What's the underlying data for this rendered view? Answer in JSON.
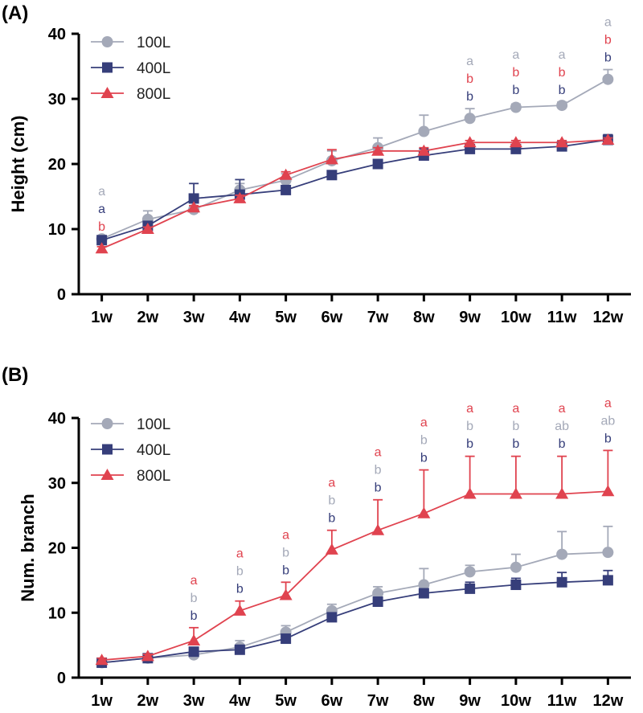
{
  "colors": {
    "100L": "#A4A9B8",
    "400L": "#363E7A",
    "800L": "#E0434F"
  },
  "chart_data": [
    {
      "panel": "(A)",
      "type": "line",
      "ylabel": "Height (cm)",
      "xlabel": "",
      "categories": [
        "1w",
        "2w",
        "3w",
        "4w",
        "5w",
        "6w",
        "7w",
        "8w",
        "9w",
        "10w",
        "11w",
        "12w"
      ],
      "ylim": [
        0,
        40
      ],
      "yticks": [
        0,
        10,
        20,
        30,
        40
      ],
      "legend_position": "top-left",
      "series": [
        {
          "name": "100L",
          "marker": "circle",
          "values": [
            8.5,
            11.5,
            13.0,
            16.0,
            17.5,
            20.5,
            22.5,
            25.0,
            27.0,
            28.7,
            29.0,
            33.0
          ],
          "errors": [
            0.5,
            1.3,
            0.5,
            1.0,
            1.0,
            1.5,
            1.5,
            2.5,
            1.5,
            0.5,
            0.5,
            1.5
          ]
        },
        {
          "name": "400L",
          "marker": "square",
          "values": [
            8.3,
            10.5,
            14.7,
            15.3,
            16.0,
            18.3,
            20.0,
            21.3,
            22.3,
            22.3,
            22.7,
            23.7
          ],
          "errors": [
            0.5,
            0.5,
            2.3,
            2.3,
            0.5,
            0.5,
            0.5,
            1.0,
            0.5,
            0.5,
            0.5,
            0.8
          ]
        },
        {
          "name": "800L",
          "marker": "triangle",
          "values": [
            7.0,
            10.0,
            13.3,
            14.7,
            18.3,
            20.7,
            22.0,
            22.0,
            23.3,
            23.3,
            23.3,
            23.7
          ],
          "errors": [
            0.3,
            0.3,
            0.3,
            0.5,
            0.5,
            1.5,
            0.5,
            0.5,
            0.3,
            0.3,
            0.3,
            0.3
          ]
        }
      ],
      "significance": [
        {
          "category": "1w",
          "top_value": 8.5,
          "letters": [
            [
              "a",
              "100L"
            ],
            [
              "a",
              "400L"
            ],
            [
              "b",
              "800L"
            ]
          ]
        },
        {
          "category": "9w",
          "top_value": 28.5,
          "letters": [
            [
              "a",
              "100L"
            ],
            [
              "b",
              "800L"
            ],
            [
              "b",
              "400L"
            ]
          ]
        },
        {
          "category": "10w",
          "top_value": 29.5,
          "letters": [
            [
              "a",
              "100L"
            ],
            [
              "b",
              "800L"
            ],
            [
              "b",
              "400L"
            ]
          ]
        },
        {
          "category": "11w",
          "top_value": 29.5,
          "letters": [
            [
              "a",
              "100L"
            ],
            [
              "b",
              "800L"
            ],
            [
              "b",
              "400L"
            ]
          ]
        },
        {
          "category": "12w",
          "top_value": 34.5,
          "letters": [
            [
              "a",
              "100L"
            ],
            [
              "b",
              "800L"
            ],
            [
              "b",
              "400L"
            ]
          ]
        }
      ]
    },
    {
      "panel": "(B)",
      "type": "line",
      "ylabel": "Num. branch",
      "xlabel": "",
      "categories": [
        "1w",
        "2w",
        "3w",
        "4w",
        "5w",
        "6w",
        "7w",
        "8w",
        "9w",
        "10w",
        "11w",
        "12w"
      ],
      "ylim": [
        0,
        40
      ],
      "yticks": [
        0,
        10,
        20,
        30,
        40
      ],
      "legend_position": "top-left",
      "series": [
        {
          "name": "100L",
          "marker": "circle",
          "values": [
            2.3,
            3.0,
            3.5,
            4.7,
            7.0,
            10.3,
            13.0,
            14.3,
            16.3,
            17.0,
            19.0,
            19.3
          ],
          "errors": [
            0.3,
            0.3,
            0.3,
            1.0,
            1.0,
            1.0,
            1.0,
            2.5,
            1.0,
            2.0,
            3.5,
            4.0
          ]
        },
        {
          "name": "400L",
          "marker": "square",
          "values": [
            2.3,
            3.0,
            4.0,
            4.3,
            6.0,
            9.3,
            11.7,
            13.0,
            13.7,
            14.3,
            14.7,
            15.0
          ],
          "errors": [
            0.3,
            0.3,
            0.3,
            0.3,
            0.5,
            0.5,
            0.5,
            0.5,
            1.0,
            1.0,
            1.5,
            1.5
          ]
        },
        {
          "name": "800L",
          "marker": "triangle",
          "values": [
            2.7,
            3.3,
            5.7,
            10.3,
            12.7,
            19.7,
            22.7,
            25.3,
            28.3,
            28.3,
            28.3,
            28.7
          ],
          "errors": [
            0.3,
            0.3,
            2.0,
            1.5,
            2.0,
            3.0,
            4.7,
            6.7,
            5.8,
            5.8,
            5.8,
            6.3
          ]
        }
      ],
      "significance": [
        {
          "category": "3w",
          "top_value": 7.7,
          "letters": [
            [
              "a",
              "800L"
            ],
            [
              "b",
              "100L"
            ],
            [
              "b",
              "400L"
            ]
          ]
        },
        {
          "category": "4w",
          "top_value": 11.8,
          "letters": [
            [
              "a",
              "800L"
            ],
            [
              "b",
              "100L"
            ],
            [
              "b",
              "400L"
            ]
          ]
        },
        {
          "category": "5w",
          "top_value": 14.7,
          "letters": [
            [
              "a",
              "800L"
            ],
            [
              "b",
              "100L"
            ],
            [
              "b",
              "400L"
            ]
          ]
        },
        {
          "category": "6w",
          "top_value": 22.7,
          "letters": [
            [
              "a",
              "800L"
            ],
            [
              "b",
              "100L"
            ],
            [
              "b",
              "400L"
            ]
          ]
        },
        {
          "category": "7w",
          "top_value": 27.4,
          "letters": [
            [
              "a",
              "800L"
            ],
            [
              "b",
              "100L"
            ],
            [
              "b",
              "400L"
            ]
          ]
        },
        {
          "category": "8w",
          "top_value": 32.0,
          "letters": [
            [
              "a",
              "800L"
            ],
            [
              "b",
              "100L"
            ],
            [
              "b",
              "400L"
            ]
          ]
        },
        {
          "category": "9w",
          "top_value": 34.2,
          "letters": [
            [
              "a",
              "800L"
            ],
            [
              "b",
              "100L"
            ],
            [
              "b",
              "400L"
            ]
          ]
        },
        {
          "category": "10w",
          "top_value": 34.2,
          "letters": [
            [
              "a",
              "800L"
            ],
            [
              "b",
              "100L"
            ],
            [
              "b",
              "400L"
            ]
          ]
        },
        {
          "category": "11w",
          "top_value": 34.2,
          "letters": [
            [
              "a",
              "800L"
            ],
            [
              "ab",
              "100L"
            ],
            [
              "b",
              "400L"
            ]
          ]
        },
        {
          "category": "12w",
          "top_value": 35.0,
          "letters": [
            [
              "a",
              "800L"
            ],
            [
              "ab",
              "100L"
            ],
            [
              "b",
              "400L"
            ]
          ]
        }
      ]
    }
  ]
}
